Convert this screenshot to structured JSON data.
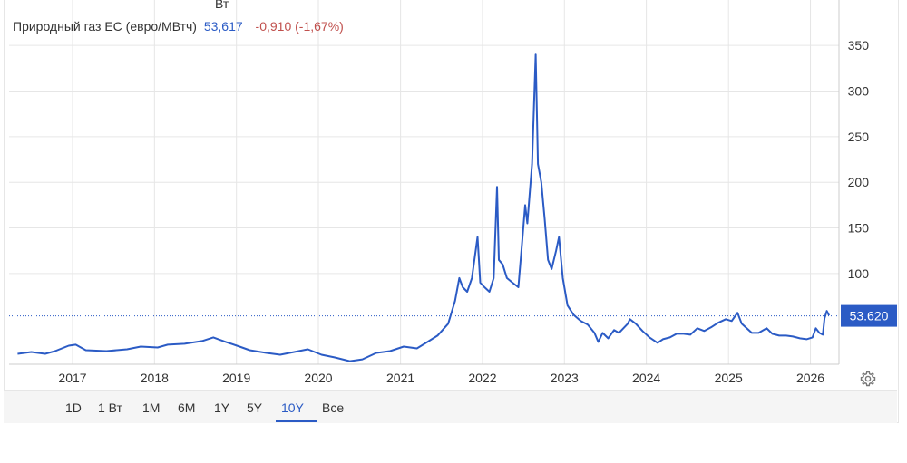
{
  "top_fragment": "Вт",
  "legend": {
    "label": "Природный газ ЕС (евро/МВтч)",
    "value": "53,617",
    "change": "-0,910 (-1,67%)"
  },
  "ranges": [
    "1D",
    "1 Вт",
    "1M",
    "6M",
    "1Y",
    "5Y",
    "10Y",
    "Все"
  ],
  "active_range": "10Y",
  "colors": {
    "line": "#2b5bc5",
    "negative": "#c0504d",
    "grid": "#e6e6e6",
    "badge": "#2b5bc5"
  },
  "icons": {
    "settings": "gear-icon"
  },
  "chart_data": {
    "type": "line",
    "x_tick_labels": [
      "2017",
      "2018",
      "2019",
      "2020",
      "2021",
      "2022",
      "2023",
      "2024",
      "2025",
      "2026"
    ],
    "y_tick_labels": [
      "100",
      "150",
      "200",
      "250",
      "300",
      "350"
    ],
    "ylim": [
      0,
      375
    ],
    "xlim": [
      "2016-05-01",
      "2026-05-01"
    ],
    "grid": true,
    "y_axis_position": "right",
    "last_value_label": "53.620",
    "series": [
      {
        "values": [
          [
            "2016-05-01",
            12
          ],
          [
            "2016-07-01",
            14
          ],
          [
            "2016-09-01",
            12
          ],
          [
            "2016-10-15",
            15
          ],
          [
            "2016-12-15",
            21
          ],
          [
            "2017-01-15",
            22
          ],
          [
            "2017-03-01",
            16
          ],
          [
            "2017-06-01",
            15
          ],
          [
            "2017-09-01",
            17
          ],
          [
            "2017-11-01",
            20
          ],
          [
            "2018-01-15",
            19
          ],
          [
            "2018-03-01",
            22
          ],
          [
            "2018-05-15",
            23
          ],
          [
            "2018-08-01",
            26
          ],
          [
            "2018-09-20",
            30
          ],
          [
            "2018-11-15",
            25
          ],
          [
            "2019-01-15",
            20
          ],
          [
            "2019-03-01",
            16
          ],
          [
            "2019-05-15",
            13
          ],
          [
            "2019-07-15",
            11
          ],
          [
            "2019-09-15",
            14
          ],
          [
            "2019-11-15",
            17
          ],
          [
            "2020-01-15",
            11
          ],
          [
            "2020-03-15",
            8
          ],
          [
            "2020-05-20",
            4
          ],
          [
            "2020-07-15",
            6
          ],
          [
            "2020-09-15",
            13
          ],
          [
            "2020-11-15",
            15
          ],
          [
            "2021-01-15",
            20
          ],
          [
            "2021-03-15",
            18
          ],
          [
            "2021-05-01",
            25
          ],
          [
            "2021-06-15",
            32
          ],
          [
            "2021-08-01",
            45
          ],
          [
            "2021-09-01",
            70
          ],
          [
            "2021-09-20",
            95
          ],
          [
            "2021-10-05",
            85
          ],
          [
            "2021-10-25",
            80
          ],
          [
            "2021-11-15",
            95
          ],
          [
            "2021-12-10",
            140
          ],
          [
            "2021-12-22",
            90
          ],
          [
            "2022-01-10",
            85
          ],
          [
            "2022-02-01",
            80
          ],
          [
            "2022-02-20",
            95
          ],
          [
            "2022-03-07",
            195
          ],
          [
            "2022-03-15",
            115
          ],
          [
            "2022-04-01",
            110
          ],
          [
            "2022-04-20",
            95
          ],
          [
            "2022-05-15",
            90
          ],
          [
            "2022-06-10",
            85
          ],
          [
            "2022-06-25",
            130
          ],
          [
            "2022-07-10",
            175
          ],
          [
            "2022-07-20",
            155
          ],
          [
            "2022-08-10",
            220
          ],
          [
            "2022-08-26",
            340
          ],
          [
            "2022-09-05",
            220
          ],
          [
            "2022-09-20",
            200
          ],
          [
            "2022-10-05",
            160
          ],
          [
            "2022-10-20",
            115
          ],
          [
            "2022-11-05",
            105
          ],
          [
            "2022-11-25",
            125
          ],
          [
            "2022-12-08",
            140
          ],
          [
            "2022-12-25",
            95
          ],
          [
            "2023-01-15",
            65
          ],
          [
            "2023-02-10",
            55
          ],
          [
            "2023-03-15",
            48
          ],
          [
            "2023-04-15",
            44
          ],
          [
            "2023-05-15",
            35
          ],
          [
            "2023-06-01",
            25
          ],
          [
            "2023-06-20",
            35
          ],
          [
            "2023-07-15",
            29
          ],
          [
            "2023-08-10",
            38
          ],
          [
            "2023-09-01",
            35
          ],
          [
            "2023-10-10",
            45
          ],
          [
            "2023-10-20",
            50
          ],
          [
            "2023-11-15",
            45
          ],
          [
            "2023-12-15",
            37
          ],
          [
            "2024-01-15",
            30
          ],
          [
            "2024-02-20",
            24
          ],
          [
            "2024-03-15",
            28
          ],
          [
            "2024-04-15",
            30
          ],
          [
            "2024-05-15",
            34
          ],
          [
            "2024-06-15",
            34
          ],
          [
            "2024-07-15",
            33
          ],
          [
            "2024-08-15",
            40
          ],
          [
            "2024-09-15",
            37
          ],
          [
            "2024-10-15",
            41
          ],
          [
            "2024-11-15",
            46
          ],
          [
            "2024-12-20",
            50
          ],
          [
            "2025-01-15",
            48
          ],
          [
            "2025-02-10",
            57
          ],
          [
            "2025-03-01",
            45
          ],
          [
            "2025-04-15",
            35
          ],
          [
            "2025-05-15",
            35
          ],
          [
            "2025-06-20",
            40
          ],
          [
            "2025-07-15",
            34
          ],
          [
            "2025-08-15",
            32
          ],
          [
            "2025-09-15",
            32
          ],
          [
            "2025-10-15",
            31
          ],
          [
            "2025-11-15",
            29
          ],
          [
            "2025-12-15",
            28
          ],
          [
            "2026-01-10",
            30
          ],
          [
            "2026-01-25",
            40
          ],
          [
            "2026-02-10",
            35
          ],
          [
            "2026-02-25",
            33
          ],
          [
            "2026-03-05",
            51
          ],
          [
            "2026-03-15",
            59
          ],
          [
            "2026-03-25",
            54
          ]
        ]
      }
    ]
  }
}
